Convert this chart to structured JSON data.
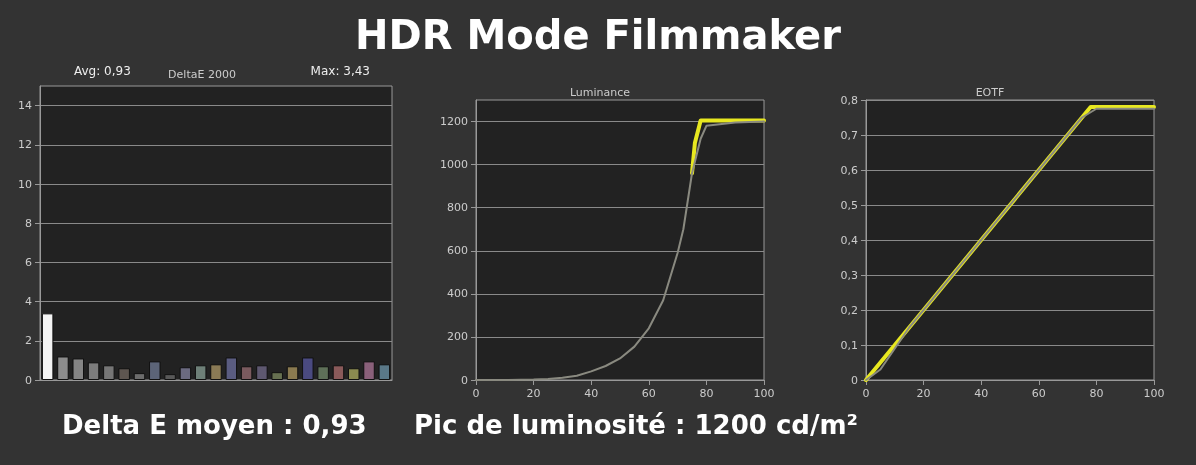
{
  "chart_data": [
    {
      "type": "other",
      "title": "HDR Mode Filmmaker",
      "annotations": [
        "Delta E moyen : 0,93",
        "Pic de luminosité : 1200 cd/m²"
      ]
    },
    {
      "type": "bar",
      "title": "DeltaE 2000",
      "annotations": [
        "Avg: 0,93",
        "Max: 3,43"
      ],
      "categories": [
        null,
        null,
        null,
        null,
        null,
        null,
        null,
        null,
        null,
        null,
        null,
        null,
        null,
        null,
        null,
        null,
        null,
        null,
        null,
        null,
        null,
        null,
        null
      ],
      "values": [
        3.4,
        1.2,
        1.1,
        0.9,
        0.75,
        0.6,
        0.35,
        0.95,
        0.3,
        0.65,
        0.75,
        0.8,
        1.15,
        0.7,
        0.75,
        0.4,
        0.7,
        1.15,
        0.7,
        0.75,
        0.6,
        0.95,
        0.8
      ],
      "colors": [
        "#f4f4f4",
        "#8c8c8c",
        "#858585",
        "#7c7c7c",
        "#767676",
        "#5e5650",
        "#6c6c6c",
        "#5c6478",
        "#585858",
        "#6b6a80",
        "#6e8078",
        "#8a7a55",
        "#5a5c80",
        "#7a5a5e",
        "#5e5870",
        "#667050",
        "#8a7a50",
        "#4a4a80",
        "#5e7058",
        "#8a5a5a",
        "#8a8a50",
        "#8a607a",
        "#5a7888"
      ],
      "ylim": [
        0,
        15
      ],
      "yticks": [
        0,
        2,
        4,
        6,
        8,
        10,
        12,
        14
      ],
      "grid": "y"
    },
    {
      "type": "line",
      "title": "Luminance",
      "xlim": [
        0,
        100
      ],
      "xticks": [
        0,
        20,
        40,
        60,
        80,
        100
      ],
      "ylim": [
        0,
        1300
      ],
      "yticks": [
        0,
        200,
        400,
        600,
        800,
        1000,
        1200
      ],
      "grid": "y",
      "marker": "none",
      "line_style": "solid",
      "series": [
        {
          "color": "#e8e820",
          "x": [
            75,
            76,
            78,
            100
          ],
          "values": [
            960,
            1100,
            1205,
            1205
          ]
        },
        {
          "color": "#8a8a80",
          "x": [
            0,
            10,
            20,
            25,
            30,
            35,
            40,
            45,
            50,
            55,
            60,
            65,
            70,
            72,
            75,
            78,
            80,
            90,
            100
          ],
          "values": [
            0,
            0,
            2,
            5,
            10,
            20,
            40,
            65,
            100,
            155,
            240,
            370,
            590,
            700,
            960,
            1120,
            1180,
            1195,
            1200
          ]
        }
      ]
    },
    {
      "type": "line",
      "title": "EOTF",
      "xlim": [
        0,
        100
      ],
      "xticks": [
        0,
        20,
        40,
        60,
        80,
        100
      ],
      "ylim": [
        0,
        0.8
      ],
      "yticks": [
        0,
        {
          "value": 0.1,
          "label": "0,1"
        },
        {
          "value": 0.2,
          "label": "0,2"
        },
        {
          "value": 0.3,
          "label": "0,3"
        },
        {
          "value": 0.4,
          "label": "0,4"
        },
        {
          "value": 0.5,
          "label": "0,5"
        },
        {
          "value": 0.6,
          "label": "0,6"
        },
        {
          "value": 0.7,
          "label": "0,7"
        },
        {
          "value": 0.8,
          "label": "0,8"
        }
      ],
      "grid": "y",
      "marker": "none",
      "line_style": "solid",
      "series": [
        {
          "color": "#e8e820",
          "x": [
            0,
            5,
            10,
            20,
            40,
            60,
            76,
            78,
            100
          ],
          "values": [
            0,
            0.05,
            0.1,
            0.2,
            0.4,
            0.6,
            0.76,
            0.78,
            0.78
          ]
        },
        {
          "color": "#8a8a80",
          "x": [
            0,
            5,
            10,
            15,
            20,
            40,
            60,
            75,
            80,
            100
          ],
          "values": [
            0,
            0.03,
            0.09,
            0.15,
            0.2,
            0.4,
            0.6,
            0.75,
            0.775,
            0.775
          ]
        }
      ]
    }
  ]
}
